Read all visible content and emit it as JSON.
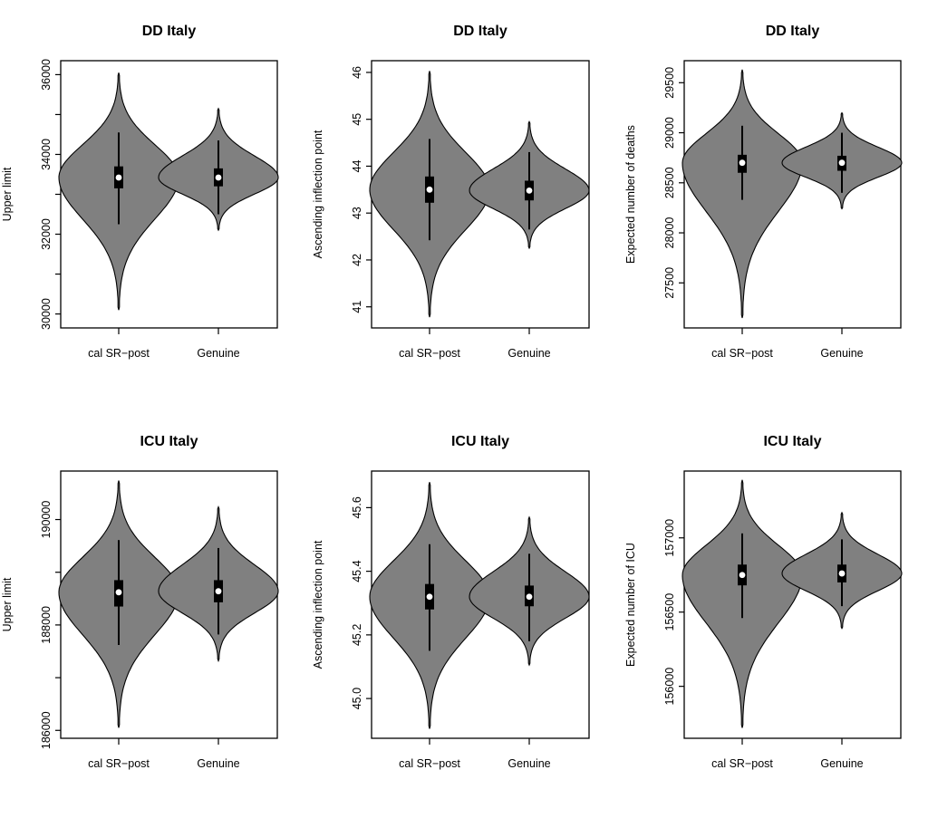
{
  "chart_data": [
    {
      "type": "violin",
      "title": "DD Italy",
      "xlabel": "",
      "ylabel": "Upper limit",
      "categories": [
        "cal SR−post",
        "Genuine"
      ],
      "yticks": [
        30000,
        31000,
        32000,
        33000,
        34000,
        35000,
        36000
      ],
      "ytick_labels": [
        "30000",
        "",
        "32000",
        "",
        "34000",
        "",
        "36000"
      ],
      "ylim": [
        29650,
        36350
      ],
      "series": [
        {
          "name": "cal SR−post",
          "min": 30100,
          "whisker_low": 32250,
          "q1": 33150,
          "median": 33420,
          "q3": 33700,
          "whisker_high": 34550,
          "max": 36050,
          "peak_halfwidth": 0.48
        },
        {
          "name": "Genuine",
          "min": 32100,
          "whisker_low": 32500,
          "q1": 33200,
          "median": 33420,
          "q3": 33650,
          "whisker_high": 34350,
          "max": 35150,
          "peak_halfwidth": 0.48
        }
      ]
    },
    {
      "type": "violin",
      "title": "DD Italy",
      "xlabel": "",
      "ylabel": "Ascending inflection point",
      "categories": [
        "cal SR−post",
        "Genuine"
      ],
      "yticks": [
        41,
        42,
        43,
        44,
        45,
        46
      ],
      "ytick_labels": [
        "41",
        "42",
        "43",
        "44",
        "45",
        "46"
      ],
      "ylim": [
        40.55,
        46.25
      ],
      "series": [
        {
          "name": "cal SR−post",
          "min": 40.78,
          "whisker_low": 42.42,
          "q1": 43.22,
          "median": 43.5,
          "q3": 43.78,
          "whisker_high": 44.58,
          "max": 46.03,
          "peak_halfwidth": 0.48
        },
        {
          "name": "Genuine",
          "min": 42.25,
          "whisker_low": 42.65,
          "q1": 43.27,
          "median": 43.48,
          "q3": 43.69,
          "whisker_high": 44.3,
          "max": 44.95,
          "peak_halfwidth": 0.48
        }
      ]
    },
    {
      "type": "violin",
      "title": "DD Italy",
      "xlabel": "",
      "ylabel": "Expected number of deaths",
      "categories": [
        "cal SR−post",
        "Genuine"
      ],
      "yticks": [
        27500,
        28000,
        28500,
        29000,
        29500
      ],
      "ytick_labels": [
        "27500",
        "28000",
        "28500",
        "29000",
        "29500"
      ],
      "ylim": [
        27050,
        29720
      ],
      "series": [
        {
          "name": "cal SR−post",
          "min": 27150,
          "whisker_low": 28330,
          "q1": 28600,
          "median": 28700,
          "q3": 28780,
          "whisker_high": 29070,
          "max": 29630,
          "peak_halfwidth": 0.48
        },
        {
          "name": "Genuine",
          "min": 28240,
          "whisker_low": 28400,
          "q1": 28620,
          "median": 28700,
          "q3": 28770,
          "whisker_high": 29000,
          "max": 29200,
          "peak_halfwidth": 0.48
        }
      ]
    },
    {
      "type": "violin",
      "title": "ICU Italy",
      "xlabel": "",
      "ylabel": "Upper limit",
      "categories": [
        "cal SR−post",
        "Genuine"
      ],
      "yticks": [
        186000,
        187000,
        188000,
        189000,
        190000
      ],
      "ytick_labels": [
        "186000",
        "",
        "188000",
        "",
        "190000"
      ],
      "ylim": [
        185850,
        190920
      ],
      "series": [
        {
          "name": "cal SR−post",
          "min": 186050,
          "whisker_low": 187620,
          "q1": 188350,
          "median": 188620,
          "q3": 188850,
          "whisker_high": 189610,
          "max": 190740,
          "peak_halfwidth": 0.48
        },
        {
          "name": "Genuine",
          "min": 187320,
          "whisker_low": 187820,
          "q1": 188430,
          "median": 188640,
          "q3": 188850,
          "whisker_high": 189460,
          "max": 190240,
          "peak_halfwidth": 0.48
        }
      ]
    },
    {
      "type": "violin",
      "title": "ICU Italy",
      "xlabel": "",
      "ylabel": "Ascending inflection point",
      "categories": [
        "cal SR−post",
        "Genuine"
      ],
      "yticks": [
        45.0,
        45.2,
        45.4,
        45.6
      ],
      "ytick_labels": [
        "45.0",
        "45.2",
        "45.4",
        "45.6"
      ],
      "ylim": [
        44.875,
        45.715
      ],
      "series": [
        {
          "name": "cal SR−post",
          "min": 44.905,
          "whisker_low": 45.15,
          "q1": 45.28,
          "median": 45.32,
          "q3": 45.36,
          "whisker_high": 45.485,
          "max": 45.68,
          "peak_halfwidth": 0.48
        },
        {
          "name": "Genuine",
          "min": 45.105,
          "whisker_low": 45.18,
          "q1": 45.29,
          "median": 45.32,
          "q3": 45.355,
          "whisker_high": 45.455,
          "max": 45.57,
          "peak_halfwidth": 0.48
        }
      ]
    },
    {
      "type": "violin",
      "title": "ICU Italy",
      "xlabel": "",
      "ylabel": "Expected number of ICU",
      "categories": [
        "cal SR−post",
        "Genuine"
      ],
      "yticks": [
        156000,
        156500,
        157000
      ],
      "ytick_labels": [
        "156000",
        "156500",
        "157000"
      ],
      "ylim": [
        155650,
        157450
      ],
      "series": [
        {
          "name": "cal SR−post",
          "min": 155720,
          "whisker_low": 156460,
          "q1": 156680,
          "median": 156750,
          "q3": 156820,
          "whisker_high": 157030,
          "max": 157390,
          "peak_halfwidth": 0.48
        },
        {
          "name": "Genuine",
          "min": 156390,
          "whisker_low": 156540,
          "q1": 156700,
          "median": 156760,
          "q3": 156820,
          "whisker_high": 156990,
          "max": 157170,
          "peak_halfwidth": 0.48
        }
      ]
    }
  ]
}
